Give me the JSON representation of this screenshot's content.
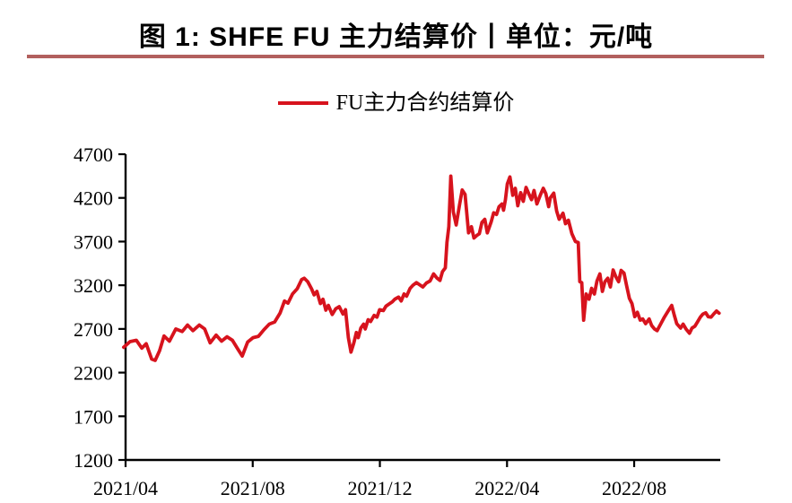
{
  "figure": {
    "title": "图 1: SHFE FU 主力结算价丨单位：元/吨",
    "legend_label": "FU主力合约结算价",
    "colors": {
      "line": "#D7131D",
      "title_rule": "#B2605E",
      "axis": "#000000",
      "text": "#000000"
    }
  },
  "chart_data": {
    "type": "line",
    "title": "图 1: SHFE FU 主力结算价丨单位：元/吨",
    "unit": "元/吨",
    "xlabel": "",
    "ylabel": "",
    "ylim": [
      1200,
      4700
    ],
    "y_ticks": [
      1200,
      1700,
      2200,
      2700,
      3200,
      3700,
      4200,
      4700
    ],
    "xlim": [
      -0.1,
      18.75
    ],
    "x_unit_note": "x = months after 2021/04",
    "x_ticks": [
      {
        "label": "2021/04",
        "m": 0
      },
      {
        "label": "2021/08",
        "m": 4
      },
      {
        "label": "2021/12",
        "m": 8
      },
      {
        "label": "2022/04",
        "m": 12
      },
      {
        "label": "2022/08",
        "m": 16
      }
    ],
    "grid": false,
    "legend_position": "top-center",
    "series": [
      {
        "name": "FU主力合约结算价",
        "color": "#D7131D",
        "points": [
          [
            -0.06,
            2490
          ],
          [
            0.14,
            2555
          ],
          [
            0.34,
            2570
          ],
          [
            0.51,
            2480
          ],
          [
            0.65,
            2530
          ],
          [
            0.82,
            2355
          ],
          [
            0.93,
            2340
          ],
          [
            1.07,
            2450
          ],
          [
            1.21,
            2620
          ],
          [
            1.38,
            2560
          ],
          [
            1.58,
            2700
          ],
          [
            1.78,
            2670
          ],
          [
            1.95,
            2745
          ],
          [
            2.12,
            2680
          ],
          [
            2.32,
            2745
          ],
          [
            2.49,
            2700
          ],
          [
            2.66,
            2540
          ],
          [
            2.85,
            2630
          ],
          [
            3.02,
            2560
          ],
          [
            3.19,
            2610
          ],
          [
            3.36,
            2570
          ],
          [
            3.53,
            2470
          ],
          [
            3.67,
            2390
          ],
          [
            3.84,
            2550
          ],
          [
            4.01,
            2600
          ],
          [
            4.18,
            2615
          ],
          [
            4.35,
            2690
          ],
          [
            4.52,
            2755
          ],
          [
            4.69,
            2780
          ],
          [
            4.86,
            2880
          ],
          [
            5.0,
            3020
          ],
          [
            5.11,
            2995
          ],
          [
            5.25,
            3100
          ],
          [
            5.4,
            3160
          ],
          [
            5.54,
            3265
          ],
          [
            5.62,
            3280
          ],
          [
            5.73,
            3240
          ],
          [
            5.85,
            3160
          ],
          [
            5.93,
            3090
          ],
          [
            6.02,
            3130
          ],
          [
            6.13,
            2990
          ],
          [
            6.21,
            3040
          ],
          [
            6.3,
            2915
          ],
          [
            6.38,
            2970
          ],
          [
            6.5,
            2865
          ],
          [
            6.61,
            2930
          ],
          [
            6.72,
            2955
          ],
          [
            6.84,
            2870
          ],
          [
            6.92,
            2920
          ],
          [
            7.01,
            2600
          ],
          [
            7.09,
            2435
          ],
          [
            7.18,
            2540
          ],
          [
            7.26,
            2660
          ],
          [
            7.32,
            2600
          ],
          [
            7.4,
            2710
          ],
          [
            7.49,
            2755
          ],
          [
            7.54,
            2700
          ],
          [
            7.63,
            2805
          ],
          [
            7.71,
            2785
          ],
          [
            7.82,
            2855
          ],
          [
            7.91,
            2835
          ],
          [
            7.99,
            2920
          ],
          [
            8.11,
            2910
          ],
          [
            8.19,
            2960
          ],
          [
            8.31,
            2990
          ],
          [
            8.39,
            3010
          ],
          [
            8.47,
            3040
          ],
          [
            8.59,
            3065
          ],
          [
            8.67,
            3020
          ],
          [
            8.76,
            3100
          ],
          [
            8.84,
            3075
          ],
          [
            8.95,
            3165
          ],
          [
            9.04,
            3200
          ],
          [
            9.15,
            3230
          ],
          [
            9.27,
            3200
          ],
          [
            9.35,
            3180
          ],
          [
            9.46,
            3225
          ],
          [
            9.58,
            3250
          ],
          [
            9.69,
            3330
          ],
          [
            9.8,
            3280
          ],
          [
            9.89,
            3255
          ],
          [
            9.97,
            3355
          ],
          [
            10.06,
            3400
          ],
          [
            10.11,
            3690
          ],
          [
            10.17,
            3870
          ],
          [
            10.23,
            4450
          ],
          [
            10.31,
            4040
          ],
          [
            10.4,
            3890
          ],
          [
            10.51,
            4130
          ],
          [
            10.59,
            4290
          ],
          [
            10.68,
            4240
          ],
          [
            10.79,
            3800
          ],
          [
            10.88,
            3870
          ],
          [
            10.96,
            3740
          ],
          [
            11.05,
            3770
          ],
          [
            11.13,
            3790
          ],
          [
            11.21,
            3920
          ],
          [
            11.3,
            3955
          ],
          [
            11.38,
            3800
          ],
          [
            11.5,
            3925
          ],
          [
            11.58,
            4030
          ],
          [
            11.67,
            4010
          ],
          [
            11.75,
            4100
          ],
          [
            11.84,
            4130
          ],
          [
            11.89,
            4060
          ],
          [
            11.95,
            4180
          ],
          [
            12.01,
            4360
          ],
          [
            12.09,
            4440
          ],
          [
            12.18,
            4230
          ],
          [
            12.26,
            4310
          ],
          [
            12.34,
            4110
          ],
          [
            12.43,
            4260
          ],
          [
            12.51,
            4160
          ],
          [
            12.6,
            4320
          ],
          [
            12.68,
            4250
          ],
          [
            12.77,
            4180
          ],
          [
            12.85,
            4285
          ],
          [
            12.94,
            4130
          ],
          [
            13.05,
            4235
          ],
          [
            13.14,
            4310
          ],
          [
            13.22,
            4250
          ],
          [
            13.31,
            4100
          ],
          [
            13.36,
            4200
          ],
          [
            13.47,
            4255
          ],
          [
            13.56,
            4050
          ],
          [
            13.64,
            3955
          ],
          [
            13.76,
            4025
          ],
          [
            13.84,
            3905
          ],
          [
            13.93,
            3945
          ],
          [
            14.04,
            3790
          ],
          [
            14.15,
            3700
          ],
          [
            14.24,
            3690
          ],
          [
            14.29,
            3240
          ],
          [
            14.35,
            3230
          ],
          [
            14.41,
            2800
          ],
          [
            14.49,
            3100
          ],
          [
            14.58,
            3040
          ],
          [
            14.66,
            3165
          ],
          [
            14.75,
            3100
          ],
          [
            14.83,
            3250
          ],
          [
            14.92,
            3330
          ],
          [
            15.0,
            3130
          ],
          [
            15.08,
            3240
          ],
          [
            15.17,
            3280
          ],
          [
            15.25,
            3180
          ],
          [
            15.34,
            3375
          ],
          [
            15.42,
            3300
          ],
          [
            15.51,
            3240
          ],
          [
            15.59,
            3370
          ],
          [
            15.68,
            3340
          ],
          [
            15.76,
            3200
          ],
          [
            15.85,
            3050
          ],
          [
            15.93,
            2990
          ],
          [
            16.02,
            2840
          ],
          [
            16.1,
            2890
          ],
          [
            16.19,
            2800
          ],
          [
            16.27,
            2815
          ],
          [
            16.36,
            2760
          ],
          [
            16.47,
            2815
          ],
          [
            16.55,
            2740
          ],
          [
            16.64,
            2700
          ],
          [
            16.72,
            2680
          ],
          [
            16.84,
            2760
          ],
          [
            16.95,
            2835
          ],
          [
            17.06,
            2900
          ],
          [
            17.18,
            2970
          ],
          [
            17.26,
            2860
          ],
          [
            17.34,
            2760
          ],
          [
            17.46,
            2710
          ],
          [
            17.54,
            2755
          ],
          [
            17.63,
            2700
          ],
          [
            17.74,
            2650
          ],
          [
            17.82,
            2710
          ],
          [
            17.91,
            2730
          ],
          [
            17.99,
            2780
          ],
          [
            18.08,
            2835
          ],
          [
            18.16,
            2870
          ],
          [
            18.25,
            2885
          ],
          [
            18.33,
            2840
          ],
          [
            18.42,
            2835
          ],
          [
            18.5,
            2870
          ],
          [
            18.59,
            2905
          ],
          [
            18.67,
            2880
          ]
        ]
      }
    ]
  }
}
